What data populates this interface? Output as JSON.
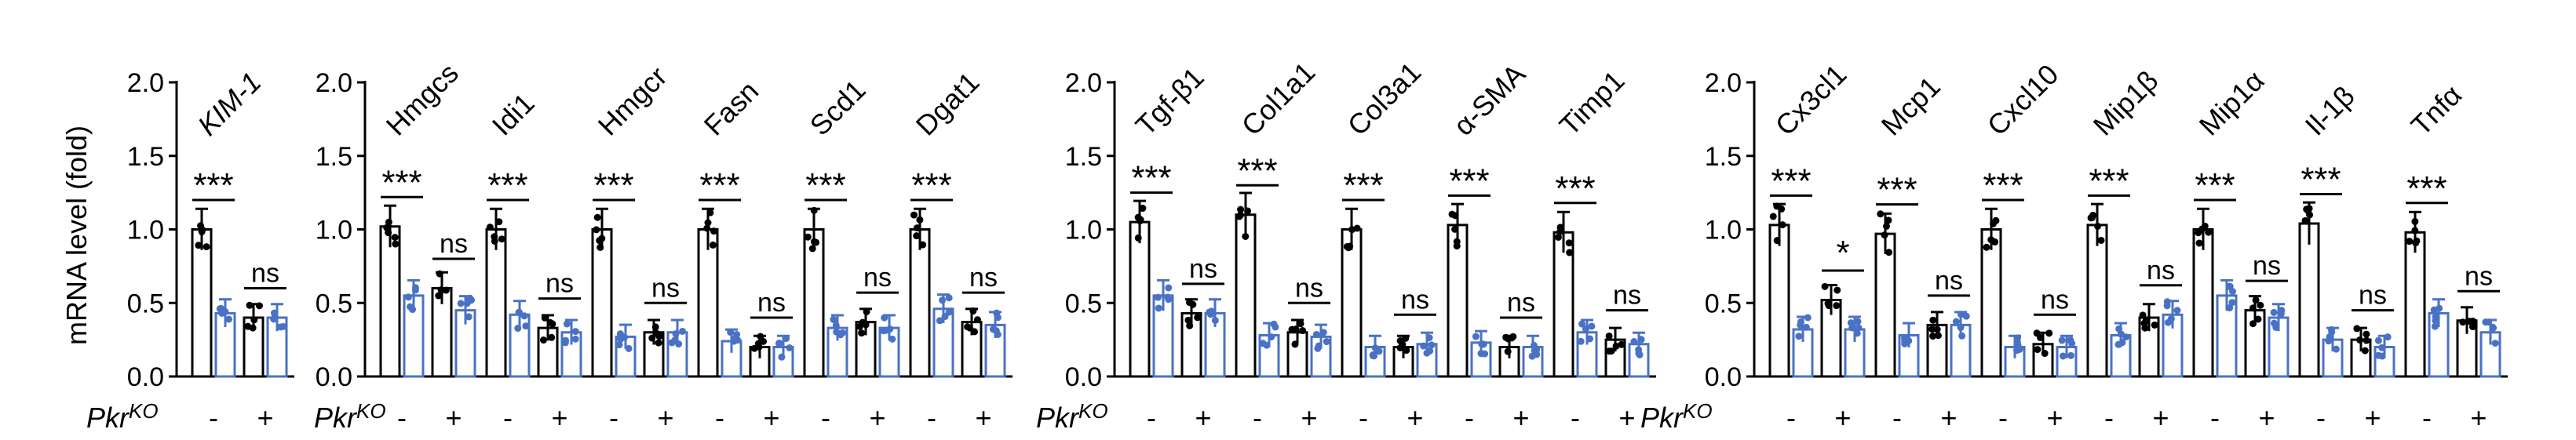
{
  "figure": {
    "ylabel": "mRNA level (fold)",
    "yticks": [
      "0.0",
      "0.5",
      "1.0",
      "1.5",
      "2.0"
    ],
    "xrow_label": "Pkr",
    "xrow_label_sup": "KO",
    "pkr_minus": "-",
    "pkr_plus": "+",
    "colors": {
      "wt": "#000000",
      "ko": "#4a72c4"
    },
    "legend_description": "bars grouped per gene: Pkr-/- of white-fill control pair then Pkr+ pair; black = control, blue = knockdown"
  },
  "chart_data": [
    {
      "type": "bar",
      "ylim": [
        0,
        2.0
      ],
      "genes": [
        "KIM-1"
      ],
      "groups": [
        {
          "gene": "KIM-1",
          "pkr_minus": {
            "black": 1.0,
            "blue": 0.43
          },
          "pkr_plus": {
            "black": 0.4,
            "blue": 0.4
          },
          "sig_minus": "***",
          "sig_plus": "ns"
        }
      ]
    },
    {
      "type": "bar",
      "ylim": [
        0,
        2.0
      ],
      "genes": [
        "Hmgcs",
        "Idi1",
        "Hmgcr",
        "Fasn",
        "Scd1",
        "Dgat1"
      ],
      "groups": [
        {
          "gene": "Hmgcs",
          "pkr_minus": {
            "black": 1.02,
            "blue": 0.55
          },
          "pkr_plus": {
            "black": 0.6,
            "blue": 0.45
          },
          "sig_minus": "***",
          "sig_plus": "ns"
        },
        {
          "gene": "Idi1",
          "pkr_minus": {
            "black": 1.0,
            "blue": 0.42
          },
          "pkr_plus": {
            "black": 0.33,
            "blue": 0.3
          },
          "sig_minus": "***",
          "sig_plus": "ns"
        },
        {
          "gene": "Hmgcr",
          "pkr_minus": {
            "black": 1.0,
            "blue": 0.27
          },
          "pkr_plus": {
            "black": 0.3,
            "blue": 0.3
          },
          "sig_minus": "***",
          "sig_plus": "ns"
        },
        {
          "gene": "Fasn",
          "pkr_minus": {
            "black": 1.0,
            "blue": 0.24
          },
          "pkr_plus": {
            "black": 0.2,
            "blue": 0.2
          },
          "sig_minus": "***",
          "sig_plus": "ns"
        },
        {
          "gene": "Scd1",
          "pkr_minus": {
            "black": 1.0,
            "blue": 0.33
          },
          "pkr_plus": {
            "black": 0.37,
            "blue": 0.33
          },
          "sig_minus": "***",
          "sig_plus": "ns"
        },
        {
          "gene": "Dgat1",
          "pkr_minus": {
            "black": 1.0,
            "blue": 0.46
          },
          "pkr_plus": {
            "black": 0.37,
            "blue": 0.35
          },
          "sig_minus": "***",
          "sig_plus": "ns"
        }
      ]
    },
    {
      "type": "bar",
      "ylim": [
        0,
        2.0
      ],
      "genes": [
        "Tgf-β1",
        "Col1a1",
        "Col3a1",
        "α-SMA",
        "Timp1"
      ],
      "groups": [
        {
          "gene": "Tgf-β1",
          "pkr_minus": {
            "black": 1.05,
            "blue": 0.55
          },
          "pkr_plus": {
            "black": 0.43,
            "blue": 0.43
          },
          "sig_minus": "***",
          "sig_plus": "ns"
        },
        {
          "gene": "Col1a1",
          "pkr_minus": {
            "black": 1.1,
            "blue": 0.28
          },
          "pkr_plus": {
            "black": 0.3,
            "blue": 0.27
          },
          "sig_minus": "***",
          "sig_plus": "ns"
        },
        {
          "gene": "Col3a1",
          "pkr_minus": {
            "black": 1.0,
            "blue": 0.2
          },
          "pkr_plus": {
            "black": 0.2,
            "blue": 0.22
          },
          "sig_minus": "***",
          "sig_plus": "ns"
        },
        {
          "gene": "α-SMA",
          "pkr_minus": {
            "black": 1.03,
            "blue": 0.23
          },
          "pkr_plus": {
            "black": 0.2,
            "blue": 0.2
          },
          "sig_minus": "***",
          "sig_plus": "ns"
        },
        {
          "gene": "Timp1",
          "pkr_minus": {
            "black": 0.98,
            "blue": 0.3
          },
          "pkr_plus": {
            "black": 0.25,
            "blue": 0.22
          },
          "sig_minus": "***",
          "sig_plus": "ns"
        }
      ]
    },
    {
      "type": "bar",
      "ylim": [
        0,
        2.0
      ],
      "genes": [
        "Cx3cl1",
        "Mcp1",
        "Cxcl10",
        "Mip1β",
        "Mip1α",
        "Il-1β",
        "Tnfα"
      ],
      "groups": [
        {
          "gene": "Cx3cl1",
          "pkr_minus": {
            "black": 1.03,
            "blue": 0.32
          },
          "pkr_plus": {
            "black": 0.52,
            "blue": 0.32
          },
          "sig_minus": "***",
          "sig_plus": "*"
        },
        {
          "gene": "Mcp1",
          "pkr_minus": {
            "black": 0.97,
            "blue": 0.28
          },
          "pkr_plus": {
            "black": 0.35,
            "blue": 0.35
          },
          "sig_minus": "***",
          "sig_plus": "ns"
        },
        {
          "gene": "Cxcl10",
          "pkr_minus": {
            "black": 1.0,
            "blue": 0.2
          },
          "pkr_plus": {
            "black": 0.22,
            "blue": 0.2
          },
          "sig_minus": "***",
          "sig_plus": "ns"
        },
        {
          "gene": "Mip1β",
          "pkr_minus": {
            "black": 1.03,
            "blue": 0.28
          },
          "pkr_plus": {
            "black": 0.4,
            "blue": 0.42
          },
          "sig_minus": "***",
          "sig_plus": "ns"
        },
        {
          "gene": "Mip1α",
          "pkr_minus": {
            "black": 1.0,
            "blue": 0.55
          },
          "pkr_plus": {
            "black": 0.45,
            "blue": 0.4
          },
          "sig_minus": "***",
          "sig_plus": "ns"
        },
        {
          "gene": "Il-1β",
          "pkr_minus": {
            "black": 1.04,
            "blue": 0.25
          },
          "pkr_plus": {
            "black": 0.25,
            "blue": 0.2
          },
          "sig_minus": "***",
          "sig_plus": "ns"
        },
        {
          "gene": "Tnfα",
          "pkr_minus": {
            "black": 0.98,
            "blue": 0.43
          },
          "pkr_plus": {
            "black": 0.38,
            "blue": 0.3
          },
          "sig_minus": "***",
          "sig_plus": "ns"
        }
      ]
    }
  ]
}
